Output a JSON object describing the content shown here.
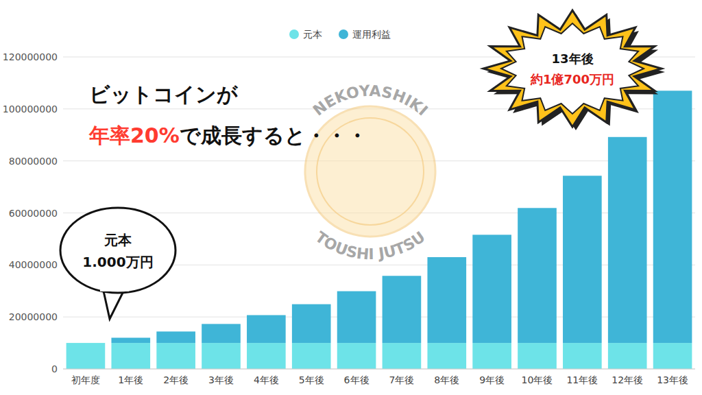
{
  "chart_data": {
    "type": "bar",
    "title": "ビットコインが",
    "subtitle": [
      "年率20%",
      "で成長すると・・・"
    ],
    "categories": [
      "初年度",
      "1年後",
      "2年後",
      "3年後",
      "4年後",
      "5年後",
      "6年後",
      "7年後",
      "8年後",
      "9年後",
      "10年後",
      "11年後",
      "12年後",
      "13年後"
    ],
    "series": [
      {
        "name": "元本",
        "color": "#6de3e8",
        "values": [
          10000000,
          10000000,
          10000000,
          10000000,
          10000000,
          10000000,
          10000000,
          10000000,
          10000000,
          10000000,
          10000000,
          10000000,
          10000000,
          10000000
        ]
      },
      {
        "name": "運用利益",
        "color": "#3fb5d7",
        "values": [
          0,
          2000000,
          4400000,
          7300000,
          10700000,
          14900000,
          19900000,
          25800000,
          33000000,
          41600000,
          51900000,
          64300000,
          79200000,
          97000000
        ]
      }
    ],
    "stacked": true,
    "ylim": [
      0,
      120000000
    ],
    "yticks": [
      0,
      20000000,
      40000000,
      60000000,
      80000000,
      100000000,
      120000000
    ],
    "grid": true,
    "legend": "top",
    "annotations": [
      "13年後",
      "約1億700万円",
      "元本",
      "1.000万円",
      "NEKOYASHIKI",
      "TOUSHI JUTSU"
    ]
  }
}
